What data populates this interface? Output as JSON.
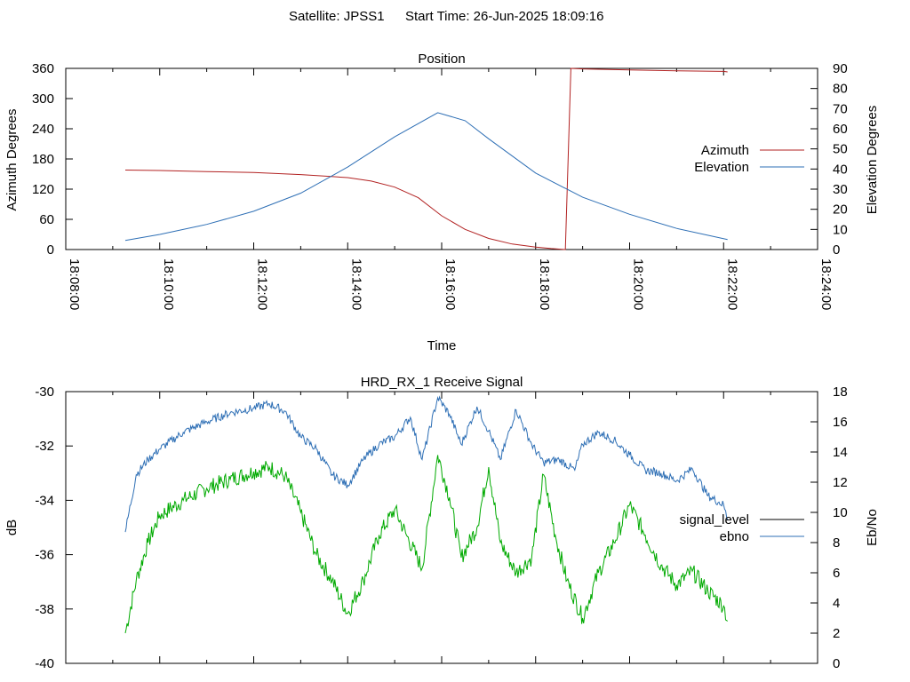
{
  "header": {
    "satellite": "Satellite: JPSS1",
    "start_time": "Start Time: 26-Jun-2025 18:09:16"
  },
  "chart_data": [
    {
      "type": "line",
      "title": "Position",
      "xlabel": "Time",
      "ylabel": "Azimuth Degrees",
      "y2label": "Elevation Degrees",
      "x_ticks": [
        "18:08:00",
        "18:10:00",
        "18:12:00",
        "18:14:00",
        "18:16:00",
        "18:18:00",
        "18:20:00",
        "18:22:00",
        "18:24:00"
      ],
      "xlim": [
        "18:08:00",
        "18:24:00"
      ],
      "y_ticks": [
        0,
        60,
        120,
        180,
        240,
        300,
        360
      ],
      "y2_ticks": [
        0,
        10,
        20,
        30,
        40,
        50,
        60,
        70,
        80,
        90
      ],
      "ylim": [
        0,
        360
      ],
      "y2lim": [
        0,
        90
      ],
      "legend_position": "right",
      "series": [
        {
          "name": "Azimuth",
          "axis": "left",
          "color": "#b22222",
          "points": [
            [
              "18:09:16",
              158
            ],
            [
              "18:10:00",
              157
            ],
            [
              "18:11:00",
              155
            ],
            [
              "18:12:00",
              153
            ],
            [
              "18:13:00",
              149
            ],
            [
              "18:13:30",
              146
            ],
            [
              "18:14:00",
              143
            ],
            [
              "18:14:30",
              136
            ],
            [
              "18:15:00",
              124
            ],
            [
              "18:15:30",
              103
            ],
            [
              "18:16:00",
              67
            ],
            [
              "18:16:30",
              40
            ],
            [
              "18:17:00",
              22
            ],
            [
              "18:17:30",
              11
            ],
            [
              "18:18:00",
              5
            ],
            [
              "18:18:20",
              2
            ],
            [
              "18:18:38",
              0
            ],
            [
              "18:18:45",
              360
            ],
            [
              "18:19:00",
              359
            ],
            [
              "18:20:00",
              357
            ],
            [
              "18:21:00",
              355
            ],
            [
              "18:22:00",
              354
            ],
            [
              "18:22:05",
              353
            ]
          ]
        },
        {
          "name": "Elevation",
          "axis": "right",
          "color": "#2e6fb5",
          "points": [
            [
              "18:09:16",
              4.5
            ],
            [
              "18:10:00",
              7.5
            ],
            [
              "18:11:00",
              12.5
            ],
            [
              "18:12:00",
              19
            ],
            [
              "18:13:00",
              28
            ],
            [
              "18:14:00",
              41
            ],
            [
              "18:15:00",
              56
            ],
            [
              "18:15:55",
              68
            ],
            [
              "18:16:30",
              64
            ],
            [
              "18:17:00",
              55
            ],
            [
              "18:18:00",
              38
            ],
            [
              "18:19:00",
              26
            ],
            [
              "18:20:00",
              17.5
            ],
            [
              "18:21:00",
              10.5
            ],
            [
              "18:22:05",
              5
            ]
          ]
        }
      ]
    },
    {
      "type": "line",
      "title": "HRD_RX_1 Receive Signal",
      "ylabel": "dB",
      "y2label": "Eb/No",
      "y_ticks": [
        -30,
        -32,
        -34,
        -36,
        -38,
        -40
      ],
      "y2_ticks": [
        0,
        2,
        4,
        6,
        8,
        10,
        12,
        14,
        16,
        18
      ],
      "ylim": [
        -40,
        -30
      ],
      "y2lim": [
        0,
        18
      ],
      "xlim": [
        "18:08:00",
        "18:24:00"
      ],
      "legend_position": "right",
      "series": [
        {
          "name": "signal_level",
          "axis": "right",
          "legend_color": "#000000",
          "color": "#00aa00",
          "points": [
            [
              "18:09:16",
              2
            ],
            [
              "18:09:30",
              5.5
            ],
            [
              "18:09:45",
              8
            ],
            [
              "18:10:00",
              9.8
            ],
            [
              "18:10:30",
              10.8
            ],
            [
              "18:11:00",
              11.6
            ],
            [
              "18:11:30",
              12.2
            ],
            [
              "18:12:00",
              12.7
            ],
            [
              "18:12:20",
              13
            ],
            [
              "18:12:40",
              12.4
            ],
            [
              "18:13:00",
              10
            ],
            [
              "18:13:20",
              7.2
            ],
            [
              "18:13:40",
              5.5
            ],
            [
              "18:14:00",
              3.3
            ],
            [
              "18:14:20",
              5.5
            ],
            [
              "18:14:40",
              8.5
            ],
            [
              "18:15:00",
              10.2
            ],
            [
              "18:15:15",
              8.5
            ],
            [
              "18:15:35",
              6.3
            ],
            [
              "18:15:55",
              13.8
            ],
            [
              "18:16:10",
              11
            ],
            [
              "18:16:25",
              7
            ],
            [
              "18:16:45",
              9
            ],
            [
              "18:17:00",
              13
            ],
            [
              "18:17:15",
              8
            ],
            [
              "18:17:35",
              6
            ],
            [
              "18:17:55",
              7
            ],
            [
              "18:18:10",
              12.5
            ],
            [
              "18:18:25",
              8.5
            ],
            [
              "18:18:40",
              5.5
            ],
            [
              "18:19:00",
              3
            ],
            [
              "18:19:20",
              6
            ],
            [
              "18:19:40",
              8
            ],
            [
              "18:20:00",
              10.5
            ],
            [
              "18:20:20",
              8.5
            ],
            [
              "18:20:40",
              6.5
            ],
            [
              "18:21:00",
              5.2
            ],
            [
              "18:21:20",
              6.1
            ],
            [
              "18:21:40",
              4.8
            ],
            [
              "18:22:00",
              3.8
            ],
            [
              "18:22:05",
              2.8
            ]
          ]
        },
        {
          "name": "ebno",
          "axis": "right",
          "color": "#2e6fb5",
          "points": [
            [
              "18:09:16",
              8.7
            ],
            [
              "18:09:30",
              12.5
            ],
            [
              "18:09:45",
              13.5
            ],
            [
              "18:10:00",
              14.2
            ],
            [
              "18:10:30",
              15.3
            ],
            [
              "18:11:00",
              16
            ],
            [
              "18:11:30",
              16.6
            ],
            [
              "18:12:00",
              16.9
            ],
            [
              "18:12:20",
              17.2
            ],
            [
              "18:12:40",
              16.7
            ],
            [
              "18:13:00",
              15
            ],
            [
              "18:13:20",
              14.2
            ],
            [
              "18:13:40",
              12.5
            ],
            [
              "18:14:00",
              11.8
            ],
            [
              "18:14:20",
              13.5
            ],
            [
              "18:14:40",
              14.5
            ],
            [
              "18:15:00",
              15
            ],
            [
              "18:15:20",
              16.3
            ],
            [
              "18:15:35",
              13.5
            ],
            [
              "18:15:55",
              17.6
            ],
            [
              "18:16:10",
              16.5
            ],
            [
              "18:16:25",
              14.5
            ],
            [
              "18:16:45",
              17
            ],
            [
              "18:17:00",
              15.4
            ],
            [
              "18:17:15",
              13.5
            ],
            [
              "18:17:35",
              16.8
            ],
            [
              "18:17:55",
              14.5
            ],
            [
              "18:18:10",
              13.3
            ],
            [
              "18:18:30",
              13.5
            ],
            [
              "18:18:50",
              12.8
            ],
            [
              "18:19:00",
              14.5
            ],
            [
              "18:19:20",
              15.3
            ],
            [
              "18:19:40",
              14.8
            ],
            [
              "18:20:00",
              13.8
            ],
            [
              "18:20:20",
              12.8
            ],
            [
              "18:20:40",
              12.6
            ],
            [
              "18:21:00",
              12.1
            ],
            [
              "18:21:20",
              12.9
            ],
            [
              "18:21:40",
              11.1
            ],
            [
              "18:22:00",
              10.5
            ],
            [
              "18:22:05",
              9.5
            ]
          ]
        }
      ]
    }
  ]
}
